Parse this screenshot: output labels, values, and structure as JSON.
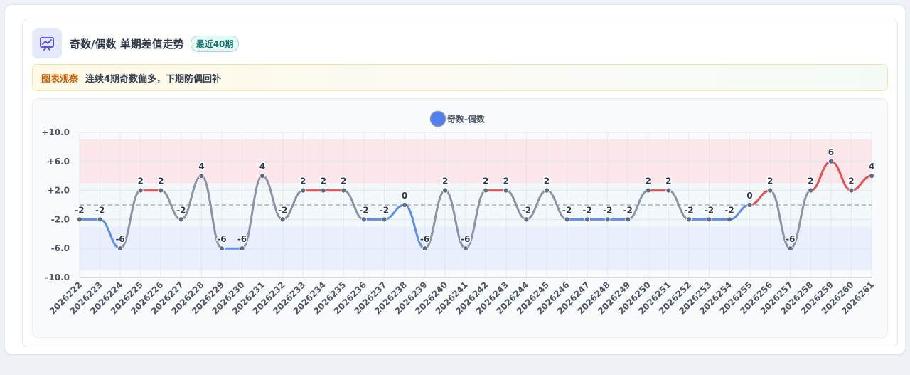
{
  "header": {
    "title": "奇数/偶数 单期差值走势",
    "badge": "最近40期"
  },
  "note": {
    "label": "图表观察",
    "text": "连续4期奇数偏多，下期防偶回补"
  },
  "colors": {
    "positive_line": "#e05252",
    "negative_line": "#5b8def",
    "neutral_line": "#8a94a6",
    "legend_dot": "#4f7ff0",
    "point": "#5f6b80",
    "pos_band": "#fbe3e6",
    "neg_band": "#e6ecfb"
  },
  "chart_data": {
    "type": "line",
    "legend": [
      "奇数-偶数"
    ],
    "legend_position": "top-center",
    "x": [
      "2026222",
      "2026223",
      "2026224",
      "2026225",
      "2026226",
      "2026227",
      "2026228",
      "2026229",
      "2026230",
      "2026231",
      "2026232",
      "2026233",
      "2026234",
      "2026235",
      "2026236",
      "2026237",
      "2026238",
      "2026239",
      "2026240",
      "2026241",
      "2026242",
      "2026243",
      "2026244",
      "2026245",
      "2026246",
      "2026247",
      "2026248",
      "2026249",
      "2026250",
      "2026251",
      "2026252",
      "2026253",
      "2026254",
      "2026255",
      "2026256",
      "2026257",
      "2026258",
      "2026259",
      "2026260",
      "2026261"
    ],
    "series": [
      {
        "name": "奇数-偶数",
        "values": [
          -2,
          -2,
          -6,
          2,
          2,
          -2,
          4,
          -6,
          -6,
          4,
          -2,
          2,
          2,
          2,
          -2,
          -2,
          0,
          -6,
          2,
          -6,
          2,
          2,
          -2,
          2,
          -2,
          -2,
          -2,
          -2,
          2,
          2,
          -2,
          -2,
          -2,
          0,
          2,
          -6,
          2,
          6,
          2,
          4
        ]
      }
    ],
    "value_labels": [
      "-2",
      "-2",
      "-6",
      "2",
      "2",
      "-2",
      "4",
      "-6",
      "-6",
      "4",
      "-2",
      "2",
      "2",
      "2",
      "-2",
      "-2",
      "0",
      "-6",
      "2",
      "-6",
      "2",
      "2",
      "-2",
      "2",
      "-2",
      "-2",
      "-2",
      "-2",
      "2",
      "2",
      "-2",
      "-2",
      "-2",
      "0",
      "2",
      "-6",
      "2",
      "6",
      "2",
      "4"
    ],
    "y_ticks": [
      "+10.0",
      "+6.0",
      "+2.0",
      "-2.0",
      "-6.0",
      "-10.0"
    ],
    "y_tick_values": [
      10,
      6,
      2,
      -2,
      -6,
      -10
    ],
    "ylim": [
      -10,
      10
    ],
    "reference_line": 0,
    "bands": [
      {
        "from": 3,
        "to": 9,
        "tone": "positive"
      },
      {
        "from": -9,
        "to": -3,
        "tone": "negative"
      }
    ],
    "grid": true
  }
}
